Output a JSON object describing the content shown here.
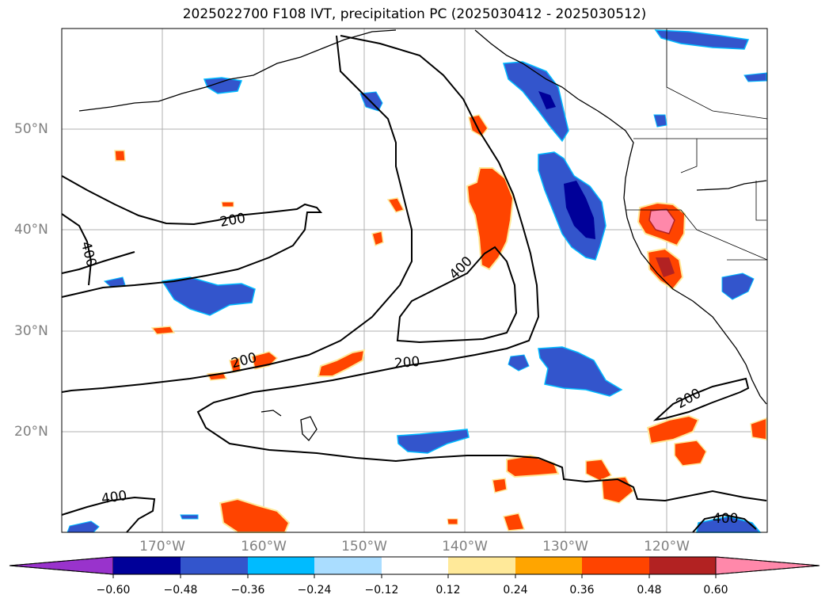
{
  "title": "2025022700 F108 IVT, precipitation PC (2025030412 - 2025030512)",
  "lat_labels": [
    {
      "text": "50°N",
      "lat": 50
    },
    {
      "text": "40°N",
      "lat": 40
    },
    {
      "text": "30°N",
      "lat": 30
    },
    {
      "text": "20°N",
      "lat": 20
    }
  ],
  "lon_labels": [
    {
      "text": "170°W",
      "lon": -170
    },
    {
      "text": "160°W",
      "lon": -160
    },
    {
      "text": "150°W",
      "lon": -150
    },
    {
      "text": "140°W",
      "lon": -140
    },
    {
      "text": "130°W",
      "lon": -130
    },
    {
      "text": "120°W",
      "lon": -120
    }
  ],
  "contour_labels": [
    "200",
    "400"
  ],
  "colorbar": {
    "ticks": [
      "−0.60",
      "−0.48",
      "−0.36",
      "−0.24",
      "−0.12",
      "0.12",
      "0.24",
      "0.36",
      "0.48",
      "0.60"
    ],
    "colors": [
      "#9933cc",
      "#000099",
      "#3355cc",
      "#00bbff",
      "#aaddff",
      "#ffffff",
      "#ffe999",
      "#ffa500",
      "#ff4400",
      "#b22222",
      "#ff88aa"
    ]
  },
  "colors": {
    "negative_strong": "#000099",
    "negative_mid": "#3355cc",
    "negative_light": "#00bbff",
    "positive_light": "#ffe999",
    "positive_mid": "#ff4400",
    "positive_strong": "#b22222",
    "positive_max": "#ff88aa"
  }
}
